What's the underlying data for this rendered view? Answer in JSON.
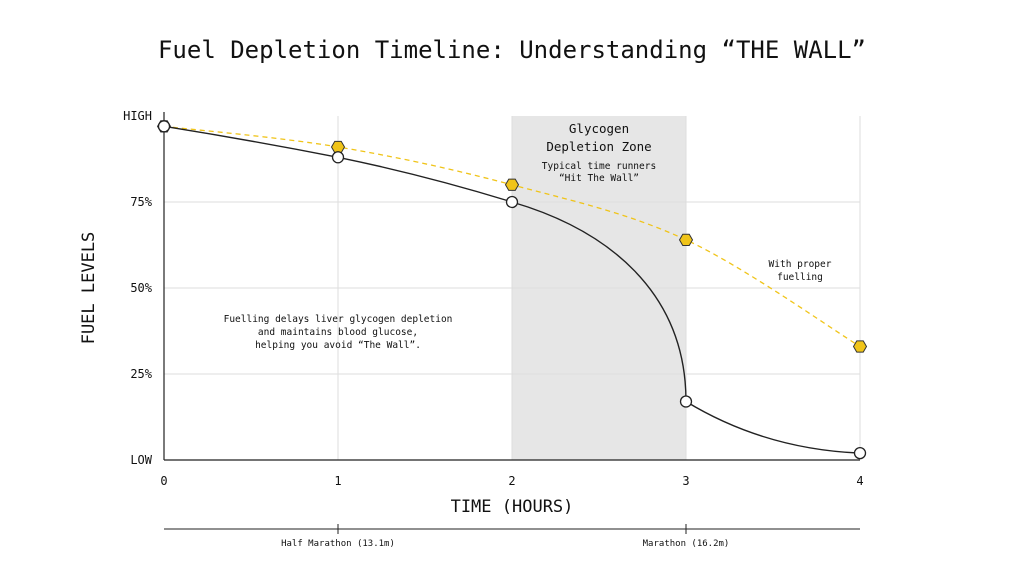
{
  "chart_data": {
    "type": "line",
    "title": "Fuel Depletion Timeline: Understanding “THE WALL”",
    "xlabel": "TIME (HOURS)",
    "ylabel": "FUEL LEVELS",
    "xlim": [
      0,
      4
    ],
    "ylim": [
      0,
      100
    ],
    "x_ticks": [
      "0",
      "1",
      "2",
      "3",
      "4"
    ],
    "y_ticks": [
      {
        "value": 100,
        "label": "HIGH"
      },
      {
        "value": 75,
        "label": "75%"
      },
      {
        "value": 50,
        "label": "50%"
      },
      {
        "value": 25,
        "label": "25%"
      },
      {
        "value": 0,
        "label": "LOW"
      }
    ],
    "grid": true,
    "series": [
      {
        "style": "solid",
        "color": "#222222",
        "marker": "circle",
        "x": [
          0,
          1,
          2,
          3,
          4
        ],
        "y": [
          97,
          88,
          75,
          17,
          2
        ]
      },
      {
        "style": "dashed",
        "color": "#f0c419",
        "marker": "hexagon",
        "x": [
          0,
          1,
          2,
          3,
          4
        ],
        "y": [
          97,
          91,
          80,
          64,
          33
        ]
      }
    ],
    "zone": {
      "x_start": 2,
      "x_end": 3,
      "title_line1": "Glycogen",
      "title_line2": "Depletion Zone",
      "note_line1": "Typical time runners",
      "note_line2": "“Hit The Wall”"
    },
    "annotations": {
      "fuelling_label_line1": "With proper",
      "fuelling_label_line2": "fuelling",
      "info_line1": "Fuelling delays liver glycogen depletion",
      "info_line2": "and maintains blood glucose,",
      "info_line3": "helping you avoid “The Wall”."
    },
    "milestones": [
      {
        "x": 1,
        "label": "Half Marathon (13.1m)"
      },
      {
        "x": 3,
        "label": "Marathon (16.2m)"
      }
    ]
  },
  "colors": {
    "zone_fill": "#e6e6e6",
    "grid": "#dddddd",
    "axis": "#222222",
    "fuelled_line": "#f0c419",
    "fuelled_stroke": "#333333"
  }
}
